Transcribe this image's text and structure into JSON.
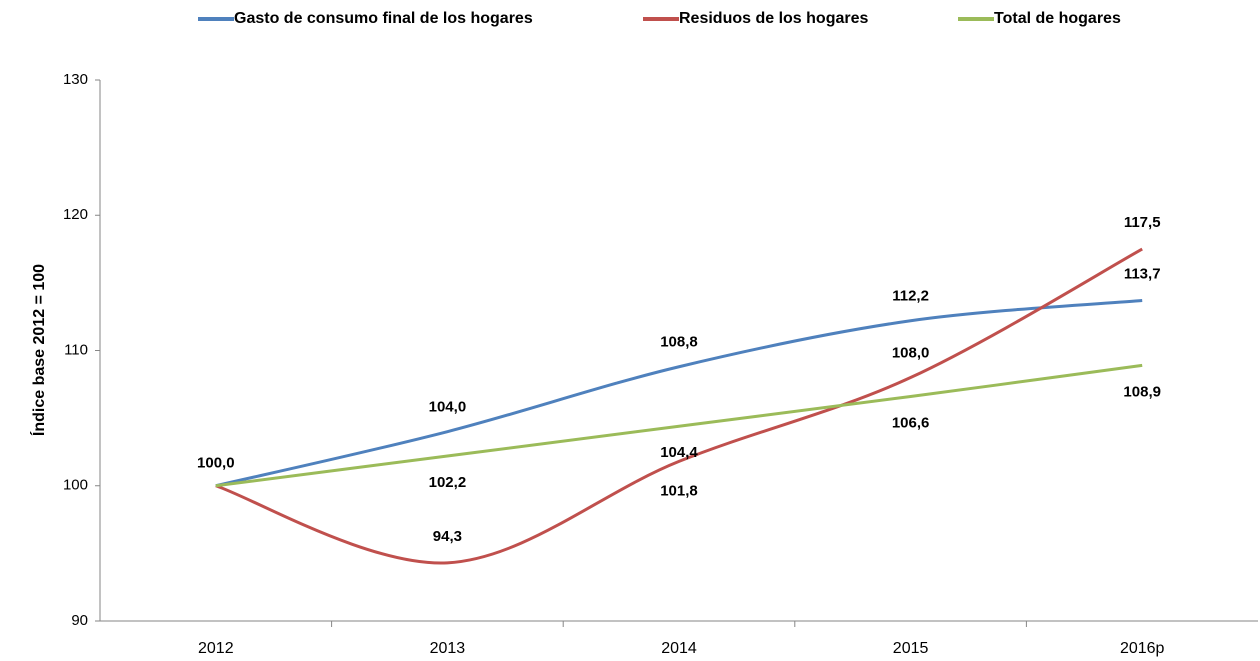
{
  "chart_data": {
    "type": "line",
    "y_label": "Índice base 2012 = 100",
    "categories": [
      "2012",
      "2013",
      "2014",
      "2015",
      "2016p"
    ],
    "series": [
      {
        "name": "Gasto de consumo final de los hogares",
        "color": "#4f81bd",
        "label_color": "#4f81bd",
        "values": [
          100,
          104.0,
          108.8,
          112.2,
          113.7
        ],
        "value_labels": [
          null,
          "104,0",
          "108,8",
          "112,2",
          "113,7"
        ]
      },
      {
        "name": "Residuos de los hogares",
        "color": "#c0504d",
        "label_color": "#c00000",
        "values": [
          100.0,
          94.3,
          101.8,
          108.0,
          117.5
        ],
        "value_labels": [
          "100,0",
          "94,3",
          "101,8",
          "108,0",
          "117,5"
        ]
      },
      {
        "name": "Total de hogares",
        "color": "#9bbb59",
        "label_color": "#77933c",
        "values": [
          100,
          102.2,
          104.4,
          106.6,
          108.9
        ],
        "value_labels": [
          null,
          "102,2",
          "104,4",
          "106,6",
          "108,9"
        ]
      }
    ],
    "ylim": [
      90,
      130
    ],
    "yticks": [
      90,
      100,
      110,
      120,
      130
    ],
    "grid": false,
    "legend": "top",
    "smooth": true
  }
}
